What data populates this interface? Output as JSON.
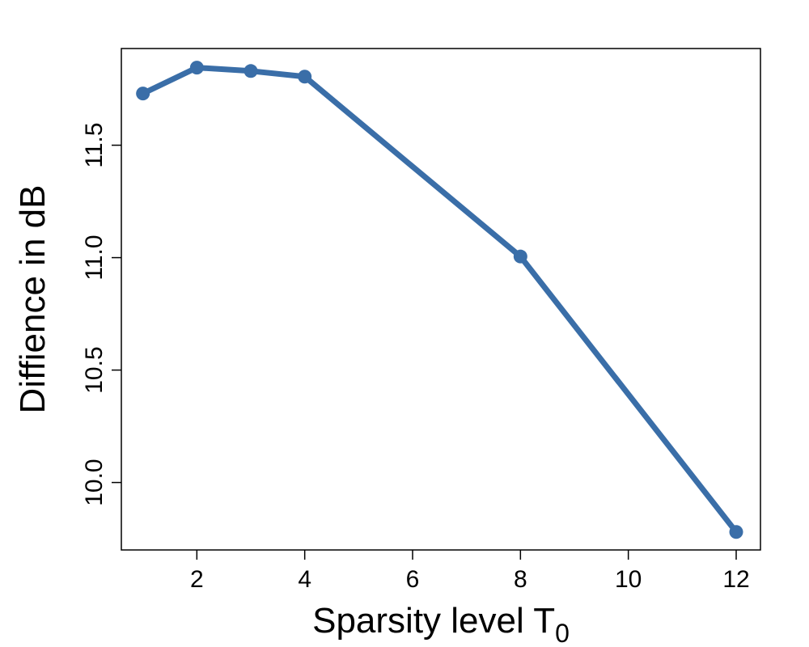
{
  "chart_data": {
    "type": "line",
    "title": "",
    "xlabel": "Sparsity level T",
    "xlabel_subscript": "0",
    "ylabel": "Diffience in dB",
    "x": [
      1,
      2,
      3,
      4,
      8,
      12
    ],
    "series": [
      {
        "values": [
          11.73,
          11.845,
          11.83,
          11.805,
          11.005,
          9.78
        ],
        "color": "#3a6ea8"
      }
    ],
    "xlim": [
      0.6,
      12.45
    ],
    "ylim": [
      9.7,
      11.93
    ],
    "xticks": [
      2,
      4,
      6,
      8,
      10,
      12
    ],
    "xtick_labels": [
      "2",
      "4",
      "6",
      "8",
      "10",
      "12"
    ],
    "yticks": [
      10.0,
      10.5,
      11.0,
      11.5
    ],
    "ytick_labels": [
      "10.0",
      "10.5",
      "11.0",
      "11.5"
    ],
    "grid": false,
    "legend": "none",
    "markers": "filled-circle"
  }
}
